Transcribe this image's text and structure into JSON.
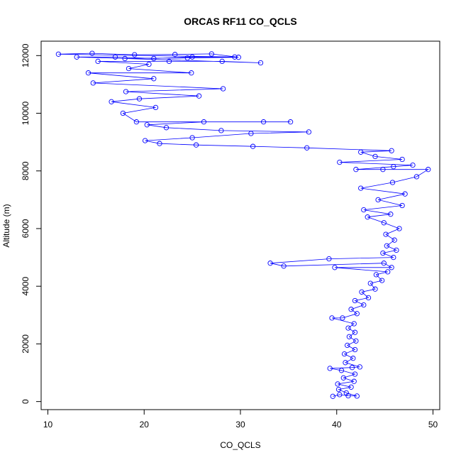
{
  "chart_data": {
    "type": "scatter",
    "title": "ORCAS RF11 CO_QCLS",
    "xlabel": "CO_QCLS",
    "ylabel": "Altitude (m)",
    "xlim": [
      9.3,
      50.7
    ],
    "ylim": [
      -280,
      12500
    ],
    "x_ticks": [
      10,
      20,
      30,
      40,
      50
    ],
    "y_ticks": [
      0,
      2000,
      4000,
      6000,
      8000,
      10000,
      12000
    ],
    "x_tick_labels": [
      "10",
      "20",
      "30",
      "40",
      "50"
    ],
    "y_tick_labels": [
      "0",
      "2000",
      "4000",
      "6000",
      "8000",
      "10000",
      "12000"
    ],
    "marker": "open-circle",
    "connect_points": true,
    "grid": false,
    "legend": "none",
    "colors": {
      "series": "#0000ff",
      "axes": "#000000",
      "background": "#ffffff"
    },
    "series": [
      {
        "points": [
          [
            39.6,
            180
          ],
          [
            40.3,
            240
          ],
          [
            41.2,
            200
          ],
          [
            42.1,
            190
          ],
          [
            41.0,
            300
          ],
          [
            40.2,
            420
          ],
          [
            41.5,
            500
          ],
          [
            40.1,
            610
          ],
          [
            41.8,
            700
          ],
          [
            40.7,
            820
          ],
          [
            41.9,
            950
          ],
          [
            40.5,
            1080
          ],
          [
            39.3,
            1150
          ],
          [
            41.6,
            1180
          ],
          [
            42.4,
            1200
          ],
          [
            40.9,
            1350
          ],
          [
            41.7,
            1500
          ],
          [
            40.8,
            1650
          ],
          [
            41.9,
            1800
          ],
          [
            41.1,
            1950
          ],
          [
            42.0,
            2100
          ],
          [
            41.3,
            2250
          ],
          [
            41.9,
            2400
          ],
          [
            41.2,
            2550
          ],
          [
            41.8,
            2700
          ],
          [
            39.5,
            2900
          ],
          [
            40.6,
            2900
          ],
          [
            42.1,
            3050
          ],
          [
            41.5,
            3200
          ],
          [
            42.8,
            3350
          ],
          [
            41.9,
            3500
          ],
          [
            43.3,
            3600
          ],
          [
            42.6,
            3800
          ],
          [
            44.0,
            3900
          ],
          [
            43.5,
            4100
          ],
          [
            44.7,
            4200
          ],
          [
            44.1,
            4400
          ],
          [
            45.3,
            4500
          ],
          [
            39.8,
            4650
          ],
          [
            45.7,
            4650
          ],
          [
            44.9,
            4800
          ],
          [
            34.5,
            4700
          ],
          [
            33.1,
            4800
          ],
          [
            39.2,
            4950
          ],
          [
            45.9,
            5000
          ],
          [
            44.8,
            5150
          ],
          [
            46.2,
            5250
          ],
          [
            45.2,
            5400
          ],
          [
            46.0,
            5600
          ],
          [
            45.1,
            5800
          ],
          [
            46.5,
            6000
          ],
          [
            44.9,
            6200
          ],
          [
            43.2,
            6400
          ],
          [
            45.6,
            6500
          ],
          [
            42.8,
            6650
          ],
          [
            46.8,
            6800
          ],
          [
            44.3,
            7000
          ],
          [
            47.1,
            7200
          ],
          [
            42.5,
            7400
          ],
          [
            45.8,
            7600
          ],
          [
            48.3,
            7800
          ],
          [
            49.5,
            8050
          ],
          [
            44.8,
            8050
          ],
          [
            42.0,
            8050
          ],
          [
            45.9,
            8150
          ],
          [
            47.9,
            8200
          ],
          [
            40.3,
            8300
          ],
          [
            46.8,
            8400
          ],
          [
            44.0,
            8500
          ],
          [
            42.5,
            8650
          ],
          [
            45.7,
            8700
          ],
          [
            36.9,
            8800
          ],
          [
            31.3,
            8850
          ],
          [
            25.4,
            8900
          ],
          [
            21.6,
            8950
          ],
          [
            20.1,
            9050
          ],
          [
            25.0,
            9150
          ],
          [
            31.1,
            9300
          ],
          [
            37.1,
            9350
          ],
          [
            28.0,
            9400
          ],
          [
            22.3,
            9500
          ],
          [
            20.3,
            9600
          ],
          [
            26.2,
            9700
          ],
          [
            32.4,
            9700
          ],
          [
            35.2,
            9700
          ],
          [
            19.2,
            9700
          ],
          [
            17.8,
            10000
          ],
          [
            21.2,
            10200
          ],
          [
            16.6,
            10400
          ],
          [
            19.5,
            10500
          ],
          [
            25.7,
            10600
          ],
          [
            18.1,
            10750
          ],
          [
            28.2,
            10850
          ],
          [
            14.7,
            11050
          ],
          [
            21.0,
            11200
          ],
          [
            14.2,
            11400
          ],
          [
            24.9,
            11400
          ],
          [
            18.4,
            11550
          ],
          [
            20.5,
            11700
          ],
          [
            15.2,
            11800
          ],
          [
            22.6,
            11800
          ],
          [
            28.1,
            11800
          ],
          [
            32.1,
            11750
          ],
          [
            13.0,
            11950
          ],
          [
            17.0,
            11950
          ],
          [
            21.0,
            11900
          ],
          [
            25.0,
            11950
          ],
          [
            29.4,
            11950
          ],
          [
            11.1,
            12050
          ],
          [
            14.6,
            12080
          ],
          [
            19.0,
            12030
          ],
          [
            23.2,
            12040
          ],
          [
            27.0,
            12060
          ],
          [
            29.8,
            11940
          ],
          [
            24.5,
            11920
          ],
          [
            18.0,
            11900
          ]
        ]
      }
    ]
  }
}
